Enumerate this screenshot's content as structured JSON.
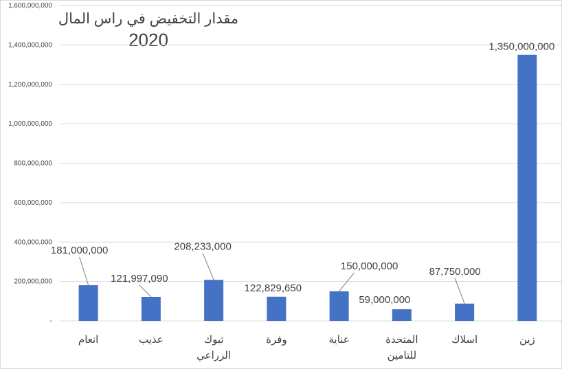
{
  "chart_data": {
    "type": "bar",
    "title": [
      "مقدار التخفيض في راس المال",
      "2020"
    ],
    "categories": [
      [
        "انعام"
      ],
      [
        "عذيب"
      ],
      [
        "تبوك",
        "الزراعي"
      ],
      [
        "وفرة"
      ],
      [
        "عناية"
      ],
      [
        "المتحدة",
        "للتامين"
      ],
      [
        "اسلاك"
      ],
      [
        "زين"
      ]
    ],
    "values": [
      181000000,
      121997090,
      208233000,
      122829650,
      150000000,
      59000000,
      87750000,
      1350000000
    ],
    "data_labels": [
      "181,000,000",
      "121,997,090",
      "208,233,000",
      "122,829,650",
      "150,000,000",
      "59,000,000",
      "87,750,000",
      "1,350,000,000"
    ],
    "ylim": [
      0,
      1600000000
    ],
    "y_ticks": [
      0,
      200000000,
      400000000,
      600000000,
      800000000,
      1000000000,
      1200000000,
      1400000000,
      1600000000
    ],
    "y_tick_labels": [
      "-",
      "200,000,000",
      "400,000,000",
      "600,000,000",
      "800,000,000",
      "1,000,000,000",
      "1,200,000,000",
      "1,400,000,000",
      "1,600,000,000"
    ],
    "grid": true,
    "legend": "none",
    "colors": {
      "bar": "#4472c4",
      "grid": "#d9d9d9",
      "text": "#404040",
      "leader": "#7f7f7f"
    }
  }
}
